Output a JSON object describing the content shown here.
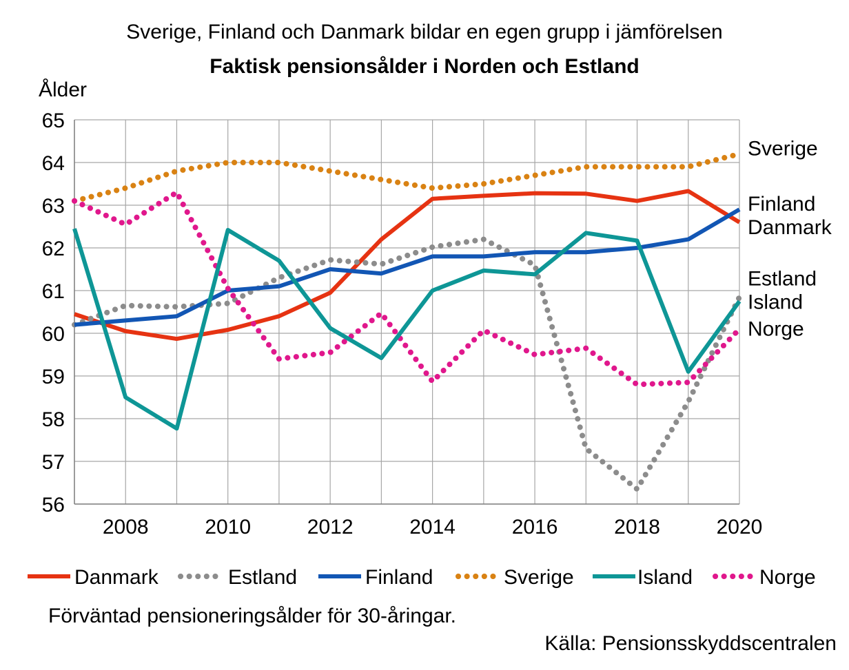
{
  "subtitle": "Sverige, Finland och Danmark bildar en egen grupp i jämförelsen",
  "title": "Faktisk pensionsålder i Norden och Estland",
  "note": "Förväntad pensioneringsålder för 30-åringar.",
  "source": "Källa: Pensionsskyddscentralen",
  "chart_data": {
    "type": "line",
    "ylabel": "Ålder",
    "xlabel": "",
    "xlim": [
      2007,
      2020
    ],
    "ylim": [
      56,
      65
    ],
    "x_ticks": [
      "2008",
      "2010",
      "2012",
      "2014",
      "2016",
      "2018",
      "2020"
    ],
    "y_ticks": [
      "56",
      "57",
      "58",
      "59",
      "60",
      "61",
      "62",
      "63",
      "64",
      "65"
    ],
    "grid": true,
    "legend_position": "bottom",
    "x": [
      2007,
      2008,
      2009,
      2010,
      2011,
      2012,
      2013,
      2014,
      2015,
      2016,
      2017,
      2018,
      2019,
      2020
    ],
    "series": [
      {
        "name": "Danmark",
        "color": "#e63312",
        "style": "solid",
        "values": [
          60.45,
          60.05,
          59.87,
          60.08,
          60.4,
          60.95,
          62.2,
          63.15,
          63.22,
          63.28,
          63.27,
          63.1,
          63.33,
          62.6
        ]
      },
      {
        "name": "Estland",
        "color": "#8c8c8c",
        "style": "dotted",
        "values": [
          60.2,
          60.65,
          60.62,
          60.7,
          61.3,
          61.72,
          61.62,
          62.02,
          62.2,
          61.6,
          57.3,
          56.35,
          58.4,
          60.85
        ]
      },
      {
        "name": "Finland",
        "color": "#1256b4",
        "style": "solid",
        "values": [
          60.2,
          60.3,
          60.4,
          61.0,
          61.1,
          61.5,
          61.4,
          61.8,
          61.8,
          61.9,
          61.9,
          62.0,
          62.2,
          62.9
        ]
      },
      {
        "name": "Sverige",
        "color": "#d98213",
        "style": "dotted",
        "values": [
          63.1,
          63.4,
          63.8,
          64.0,
          64.0,
          63.8,
          63.6,
          63.4,
          63.5,
          63.7,
          63.9,
          63.9,
          63.9,
          64.2
        ]
      },
      {
        "name": "Island",
        "color": "#0e9696",
        "style": "solid",
        "values": [
          62.45,
          58.5,
          57.77,
          62.42,
          61.7,
          60.12,
          59.42,
          61.0,
          61.47,
          61.38,
          62.35,
          62.17,
          59.1,
          60.75
        ]
      },
      {
        "name": "Norge",
        "color": "#e0178c",
        "style": "dotted",
        "values": [
          63.1,
          62.55,
          63.3,
          61.05,
          59.4,
          59.55,
          60.47,
          58.87,
          60.07,
          59.5,
          59.65,
          58.8,
          58.85,
          60.1
        ]
      }
    ],
    "end_labels": [
      {
        "text": "Sverige",
        "series": "Sverige",
        "value": 64.35
      },
      {
        "text": "Finland",
        "series": "Finland",
        "value": 63.05
      },
      {
        "text": "Danmark",
        "series": "Danmark",
        "value": 62.5
      },
      {
        "text": "Estland",
        "series": "Estland",
        "value": 61.3
      },
      {
        "text": "Island",
        "series": "Island",
        "value": 60.75
      },
      {
        "text": "Norge",
        "series": "Norge",
        "value": 60.12
      }
    ]
  }
}
